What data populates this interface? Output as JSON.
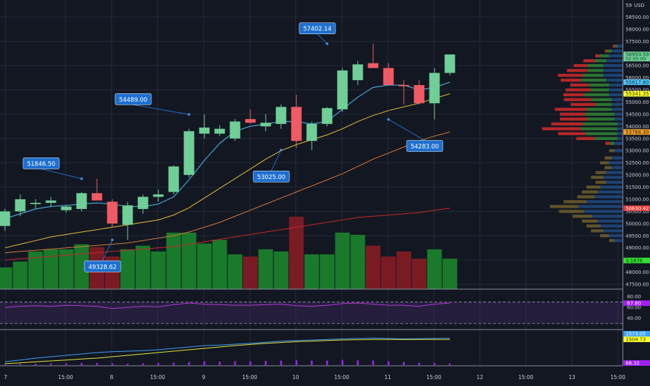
{
  "currency": "USD",
  "colors": {
    "background": "#131722",
    "grid": "#232836",
    "up": "#6fcf97",
    "down": "#f05a64",
    "vol_up": "#1a7a2b",
    "vol_down": "#7a1b24",
    "ma_fast": "#4fc3f7",
    "ma_mid": "#e8c23a",
    "ma_slow": "#d87a3a",
    "ma_long": "#c62828",
    "callout": "#1e6fd0",
    "rsi": "#b43cd8",
    "adx_blue": "#3ea1f5",
    "adx_yellow": "#e8e83a",
    "hist": "#a020f0",
    "profile_up": "#2e7d32",
    "profile_down": "#c62828",
    "profile_neutral": "#6a5a2a",
    "profile_blue": "#1f4a80"
  },
  "price_axis": {
    "ticks": [
      "58500.00",
      "58000.00",
      "57500.00",
      "57000.00",
      "56500.00",
      "56000.00",
      "55500.00",
      "55000.00",
      "54500.00",
      "54000.00",
      "53500.00",
      "53000.00",
      "52500.00",
      "52000.00",
      "51500.00",
      "51000.00",
      "50500.00",
      "50000.00",
      "49500.00",
      "49000.00",
      "48500.00",
      "48000.00",
      "47500.00"
    ],
    "top_partial": "59000.00",
    "tags": [
      {
        "text": "56959.59",
        "sub": "02:05:00",
        "bg": "#6fcf97",
        "fg": "#0b3d20",
        "value": 56959.59
      },
      {
        "text": "55817.80",
        "bg": "#4fc3f7",
        "fg": "#0a2a3a",
        "value": 55817.8
      },
      {
        "text": "55341.35",
        "bg": "#ffff33",
        "fg": "#303000",
        "value": 55341.35
      },
      {
        "text": "53768.30",
        "bg": "#f0a030",
        "fg": "#302000",
        "value": 53768.3
      },
      {
        "text": "50630.42",
        "bg": "#e53935",
        "fg": "#ffffff",
        "value": 50630.42
      },
      {
        "text": "3.167K",
        "bg": "#33dd33",
        "fg": "#003300",
        "value": 48480
      }
    ]
  },
  "rsi_axis": {
    "ticks": [
      "80.00",
      "60.00",
      "40.00"
    ],
    "tag": "67.80"
  },
  "adx_axis": {
    "tags": [
      "1573.05",
      "1504.73",
      "68.32"
    ]
  },
  "time_axis": [
    "7",
    "15:00",
    "8",
    "15:00",
    "9",
    "15:00",
    "10",
    "15:00",
    "11",
    "15:00",
    "12",
    "15:00",
    "13",
    "15:00"
  ],
  "callouts": [
    {
      "text": "57402.14",
      "value": 57402.14
    },
    {
      "text": "54489.00",
      "value": 54489.0
    },
    {
      "text": "51846.50",
      "value": 51846.5
    },
    {
      "text": "53025.00",
      "value": 53025.0
    },
    {
      "text": "54283.00",
      "value": 54283.0
    },
    {
      "text": "49328.62",
      "value": 49328.62
    }
  ],
  "chart_data": {
    "type": "candlestick",
    "currency": "USD",
    "x_labels": [
      "7",
      "15:00",
      "8",
      "15:00",
      "9",
      "15:00",
      "10",
      "15:00",
      "11",
      "15:00",
      "12",
      "15:00",
      "13",
      "15:00"
    ],
    "ylim": [
      47300,
      59200
    ],
    "candles": [
      {
        "o": 49900,
        "h": 50600,
        "l": 49700,
        "c": 50500
      },
      {
        "o": 50500,
        "h": 51200,
        "l": 50300,
        "c": 51000
      },
      {
        "o": 50800,
        "h": 51000,
        "l": 50600,
        "c": 50850
      },
      {
        "o": 50850,
        "h": 51100,
        "l": 50700,
        "c": 50950
      },
      {
        "o": 50550,
        "h": 50750,
        "l": 50450,
        "c": 50700
      },
      {
        "o": 50600,
        "h": 51300,
        "l": 50500,
        "c": 51250
      },
      {
        "o": 51250,
        "h": 51847,
        "l": 51000,
        "c": 50950
      },
      {
        "o": 50900,
        "h": 51000,
        "l": 49850,
        "c": 50000
      },
      {
        "o": 49950,
        "h": 50900,
        "l": 49329,
        "c": 50750
      },
      {
        "o": 50600,
        "h": 51200,
        "l": 50400,
        "c": 51100
      },
      {
        "o": 51100,
        "h": 51400,
        "l": 50900,
        "c": 51200
      },
      {
        "o": 51300,
        "h": 52400,
        "l": 51200,
        "c": 52350
      },
      {
        "o": 52000,
        "h": 53900,
        "l": 51900,
        "c": 53800
      },
      {
        "o": 53700,
        "h": 54489,
        "l": 53500,
        "c": 53950
      },
      {
        "o": 53700,
        "h": 54050,
        "l": 53600,
        "c": 53900
      },
      {
        "o": 53500,
        "h": 54300,
        "l": 53400,
        "c": 54200
      },
      {
        "o": 54300,
        "h": 54700,
        "l": 54100,
        "c": 54150
      },
      {
        "o": 54000,
        "h": 54500,
        "l": 53800,
        "c": 54150
      },
      {
        "o": 54100,
        "h": 54900,
        "l": 53900,
        "c": 54800
      },
      {
        "o": 54800,
        "h": 55300,
        "l": 53100,
        "c": 53400
      },
      {
        "o": 53400,
        "h": 54200,
        "l": 53025,
        "c": 54100
      },
      {
        "o": 54100,
        "h": 54800,
        "l": 54000,
        "c": 54750
      },
      {
        "o": 54700,
        "h": 56400,
        "l": 54600,
        "c": 56300
      },
      {
        "o": 55900,
        "h": 56700,
        "l": 55700,
        "c": 56550
      },
      {
        "o": 56600,
        "h": 57402,
        "l": 56500,
        "c": 56400
      },
      {
        "o": 56400,
        "h": 56600,
        "l": 55800,
        "c": 55700
      },
      {
        "o": 55700,
        "h": 55900,
        "l": 54900,
        "c": 55650
      },
      {
        "o": 55700,
        "h": 55900,
        "l": 54900,
        "c": 54950
      },
      {
        "o": 54950,
        "h": 56400,
        "l": 54283,
        "c": 56200
      },
      {
        "o": 56200,
        "h": 56959,
        "l": 56100,
        "c": 56959
      }
    ],
    "volume_relative": [
      0.3,
      0.38,
      0.52,
      0.55,
      0.55,
      0.62,
      0.58,
      0.45,
      0.55,
      0.6,
      0.52,
      0.78,
      0.78,
      0.63,
      0.68,
      0.48,
      0.45,
      0.55,
      0.52,
      1.0,
      0.48,
      0.48,
      0.78,
      0.75,
      0.6,
      0.45,
      0.52,
      0.42,
      0.55,
      0.42
    ],
    "ma_fast": [
      50200,
      50400,
      50600,
      50700,
      50750,
      50800,
      50850,
      50800,
      50700,
      50700,
      50800,
      51100,
      51800,
      52600,
      53300,
      53800,
      54000,
      54100,
      54200,
      54200,
      54100,
      54200,
      54700,
      55200,
      55600,
      55700,
      55700,
      55500,
      55600,
      55817
    ],
    "ma_mid": [
      49000,
      49150,
      49300,
      49450,
      49550,
      49650,
      49750,
      49850,
      49950,
      50050,
      50150,
      50350,
      50650,
      51050,
      51450,
      51850,
      52250,
      52650,
      53000,
      53250,
      53450,
      53650,
      53900,
      54200,
      54450,
      54650,
      54800,
      54950,
      55150,
      55341
    ],
    "ma_slow": [
      48800,
      48850,
      48900,
      48950,
      49000,
      49050,
      49100,
      49150,
      49200,
      49300,
      49400,
      49500,
      49650,
      49850,
      50050,
      50300,
      50550,
      50800,
      51050,
      51300,
      51550,
      51800,
      52050,
      52350,
      52650,
      52900,
      53150,
      53400,
      53600,
      53768
    ],
    "ma_long": [
      48500,
      48550,
      48600,
      48650,
      48700,
      48750,
      48800,
      48850,
      48900,
      48950,
      49000,
      49050,
      49150,
      49250,
      49350,
      49450,
      49550,
      49650,
      49750,
      49850,
      49950,
      50050,
      50150,
      50250,
      50300,
      50350,
      50400,
      50450,
      50550,
      50630
    ],
    "rsi": [
      60,
      62,
      63,
      62,
      64,
      63,
      62,
      58,
      60,
      62,
      61,
      65,
      68,
      66,
      65,
      64,
      64,
      65,
      66,
      63,
      62,
      64,
      67,
      68,
      66,
      64,
      64,
      62,
      66,
      67.8
    ],
    "rsi_levels": [
      70,
      30
    ],
    "adx_blue_rel": [
      0.12,
      0.18,
      0.25,
      0.3,
      0.35,
      0.4,
      0.45,
      0.48,
      0.5,
      0.52,
      0.55,
      0.6,
      0.65,
      0.7,
      0.72,
      0.75,
      0.78,
      0.82,
      0.86,
      0.88,
      0.9,
      0.92,
      0.94,
      0.96,
      0.97,
      0.96,
      0.94,
      0.95,
      0.96,
      0.97
    ],
    "adx_yellow_rel": [
      0.05,
      0.08,
      0.12,
      0.15,
      0.18,
      0.22,
      0.25,
      0.3,
      0.35,
      0.4,
      0.45,
      0.5,
      0.55,
      0.6,
      0.65,
      0.7,
      0.74,
      0.78,
      0.81,
      0.84,
      0.86,
      0.88,
      0.9,
      0.91,
      0.92,
      0.92,
      0.92,
      0.92,
      0.92,
      0.92
    ],
    "hist_rel": [
      0.1,
      0.15,
      0.2,
      0.25,
      0.25,
      0.3,
      0.3,
      0.25,
      0.2,
      0.25,
      0.3,
      0.35,
      0.45,
      0.55,
      0.5,
      0.55,
      0.55,
      0.6,
      0.65,
      0.7,
      0.65,
      0.65,
      0.75,
      0.7,
      0.65,
      0.55,
      0.45,
      0.35,
      0.3,
      0.25
    ],
    "volume_profile": [
      {
        "price": 57300,
        "up": 0.05,
        "down": 0.05,
        "blue": 0.1
      },
      {
        "price": 57100,
        "up": 0.1,
        "down": 0.05,
        "blue": 0.2
      },
      {
        "price": 56900,
        "up": 0.2,
        "down": 0.1,
        "blue": 0.25
      },
      {
        "price": 56700,
        "up": 0.25,
        "down": 0.25,
        "blue": 0.3
      },
      {
        "price": 56500,
        "up": 0.35,
        "down": 0.3,
        "blue": 0.35
      },
      {
        "price": 56300,
        "up": 0.35,
        "down": 0.45,
        "blue": 0.35
      },
      {
        "price": 56100,
        "up": 0.45,
        "down": 0.55,
        "blue": 0.35
      },
      {
        "price": 55900,
        "up": 0.55,
        "down": 0.45,
        "blue": 0.3
      },
      {
        "price": 55700,
        "up": 0.45,
        "down": 0.4,
        "blue": 0.25
      },
      {
        "price": 55500,
        "up": 0.4,
        "down": 0.55,
        "blue": 0.25
      },
      {
        "price": 55300,
        "up": 0.55,
        "down": 0.45,
        "blue": 0.25
      },
      {
        "price": 55100,
        "up": 0.45,
        "down": 0.6,
        "blue": 0.2
      },
      {
        "price": 54900,
        "up": 0.35,
        "down": 0.55,
        "blue": 0.2
      },
      {
        "price": 54700,
        "up": 0.55,
        "down": 0.7,
        "blue": 0.2
      },
      {
        "price": 54500,
        "up": 0.65,
        "down": 0.55,
        "blue": 0.15
      },
      {
        "price": 54300,
        "up": 0.6,
        "down": 0.6,
        "blue": 0.15
      },
      {
        "price": 54100,
        "up": 0.75,
        "down": 0.7,
        "blue": 0.1
      },
      {
        "price": 53900,
        "up": 0.8,
        "down": 0.85,
        "blue": 0.1
      },
      {
        "price": 53700,
        "up": 0.7,
        "down": 0.6,
        "blue": 0.1
      },
      {
        "price": 53500,
        "up": 0.5,
        "down": 0.4,
        "blue": 0.1
      },
      {
        "price": 53300,
        "up": 0.1,
        "down": 0.1,
        "blue": 0.15
      },
      {
        "price": 53000,
        "up": 0.0,
        "down": 0.0,
        "blue": 0.15
      },
      {
        "price": 52700,
        "up": 0.0,
        "down": 0.0,
        "blue": 0.2
      },
      {
        "price": 52500,
        "up": 0.0,
        "down": 0.0,
        "blue": 0.25
      },
      {
        "price": 52300,
        "up": 0.0,
        "down": 0.0,
        "blue": 0.2
      },
      {
        "price": 52100,
        "up": 0.0,
        "down": 0.0,
        "blue": 0.3
      },
      {
        "price": 51900,
        "up": 0.0,
        "down": 0.0,
        "blue": 0.35
      },
      {
        "price": 51700,
        "up": 0.0,
        "down": 0.0,
        "blue": 0.3
      },
      {
        "price": 51500,
        "up": 0.0,
        "down": 0.0,
        "blue": 0.4
      },
      {
        "price": 51300,
        "up": 0.0,
        "down": 0.0,
        "blue": 0.45
      },
      {
        "price": 51100,
        "up": 0.0,
        "down": 0.0,
        "blue": 0.5
      },
      {
        "price": 50900,
        "up": 0.0,
        "down": 0.0,
        "blue": 0.65
      },
      {
        "price": 50700,
        "up": 0.0,
        "down": 0.0,
        "blue": 0.8
      },
      {
        "price": 50500,
        "up": 0.0,
        "down": 0.0,
        "blue": 0.7
      },
      {
        "price": 50300,
        "up": 0.0,
        "down": 0.0,
        "blue": 0.55
      },
      {
        "price": 50100,
        "up": 0.0,
        "down": 0.0,
        "blue": 0.45
      },
      {
        "price": 49900,
        "up": 0.0,
        "down": 0.0,
        "blue": 0.4
      },
      {
        "price": 49700,
        "up": 0.0,
        "down": 0.0,
        "blue": 0.35
      },
      {
        "price": 49500,
        "up": 0.0,
        "down": 0.0,
        "blue": 0.25
      },
      {
        "price": 49300,
        "up": 0.0,
        "down": 0.0,
        "blue": 0.15
      }
    ]
  }
}
